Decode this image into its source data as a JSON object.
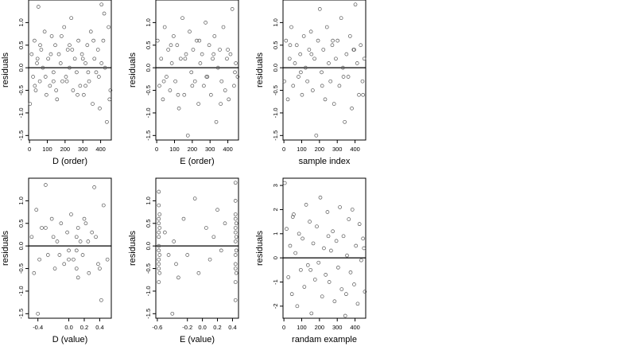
{
  "chart_data": [
    {
      "type": "scatter",
      "title": "",
      "xlabel": "D (order)",
      "ylabel": "residuals",
      "xlim": [
        -5,
        460
      ],
      "ylim": [
        -1.6,
        1.5
      ],
      "x_ticks": [
        0,
        100,
        200,
        300,
        400
      ],
      "x_tick_labels": [
        "0",
        "100",
        "200",
        "300",
        "400"
      ],
      "y_ticks": [
        -1.5,
        -1.0,
        -0.5,
        0.0,
        0.5,
        1.0
      ],
      "y_tick_labels": [
        "-1.5",
        "-1.0",
        "-0.5",
        "0.0",
        "0.5",
        "1.0"
      ],
      "reference_line": 0.0,
      "x": [
        3,
        12,
        20,
        28,
        35,
        42,
        50,
        58,
        66,
        75,
        85,
        95,
        105,
        115,
        125,
        135,
        145,
        155,
        165,
        175,
        185,
        195,
        205,
        215,
        225,
        235,
        245,
        255,
        265,
        275,
        285,
        295,
        305,
        315,
        325,
        335,
        345,
        355,
        365,
        375,
        385,
        395,
        405,
        415,
        425,
        435,
        445,
        455,
        30,
        60,
        90,
        120,
        150,
        180,
        210,
        240,
        270,
        300,
        330,
        360,
        390,
        420,
        450,
        45,
        135,
        225,
        315,
        405
      ],
      "y": [
        -0.8,
        0.3,
        -0.2,
        0.6,
        -0.5,
        0.1,
        1.35,
        -0.3,
        0.4,
        0.0,
        0.8,
        -0.6,
        0.2,
        -0.4,
        0.7,
        -0.1,
        0.5,
        -0.7,
        0.3,
        0.1,
        -0.3,
        0.9,
        -0.2,
        0.4,
        0.0,
        1.1,
        -0.5,
        0.2,
        -0.1,
        0.6,
        -0.4,
        0.3,
        -0.6,
        0.1,
        0.5,
        -0.3,
        0.8,
        -0.8,
        0.2,
        -0.1,
        0.4,
        -0.9,
        1.4,
        0.6,
        0.0,
        -1.2,
        0.9,
        -0.5,
        -0.4,
        0.5,
        -0.2,
        0.3,
        -0.5,
        0.7,
        -0.3,
        0.4,
        -0.6,
        0.2,
        -0.1,
        0.6,
        -0.2,
        1.2,
        -0.7,
        0.2,
        -0.3,
        0.5,
        -0.4,
        0.1
      ]
    },
    {
      "type": "scatter",
      "title": "",
      "xlabel": "E (order)",
      "ylabel": "residuals",
      "xlim": [
        -5,
        460
      ],
      "ylim": [
        -1.6,
        1.5
      ],
      "x_ticks": [
        0,
        100,
        200,
        300,
        400
      ],
      "x_tick_labels": [
        "0",
        "100",
        "200",
        "300",
        "400"
      ],
      "y_ticks": [
        -1.5,
        -1.0,
        -0.5,
        0.0,
        0.5,
        1.0
      ],
      "y_tick_labels": [
        "-1.5",
        "-1.0",
        "-0.5",
        "0.0",
        "0.5",
        "1.0"
      ],
      "reference_line": 0.0,
      "x": [
        5,
        15,
        25,
        35,
        45,
        55,
        65,
        75,
        85,
        95,
        105,
        115,
        125,
        135,
        145,
        155,
        165,
        175,
        185,
        195,
        205,
        215,
        225,
        235,
        245,
        255,
        265,
        275,
        285,
        295,
        305,
        315,
        325,
        335,
        345,
        355,
        365,
        375,
        385,
        395,
        405,
        415,
        425,
        435,
        445,
        455,
        40,
        80,
        120,
        160,
        200,
        240,
        280,
        320,
        360,
        400,
        440
      ],
      "y": [
        0.6,
        -0.4,
        0.2,
        -0.7,
        0.9,
        -0.2,
        0.4,
        -0.5,
        0.1,
        0.7,
        -0.3,
        0.5,
        -0.9,
        0.2,
        1.1,
        -0.6,
        0.3,
        -1.5,
        0.8,
        -0.1,
        0.4,
        -0.3,
        0.6,
        -0.8,
        0.1,
        0.3,
        -0.4,
        1.0,
        -0.2,
        0.5,
        -0.6,
        0.2,
        0.7,
        -1.2,
        0.0,
        0.4,
        -0.3,
        0.9,
        -0.5,
        0.2,
        -0.7,
        0.3,
        1.3,
        -0.4,
        0.1,
        -0.2,
        -0.3,
        0.5,
        -0.6,
        0.2,
        -0.4,
        0.6,
        -0.2,
        0.3,
        -0.8,
        0.4,
        -0.1
      ]
    },
    {
      "type": "scatter",
      "title": "",
      "xlabel": "sample index",
      "ylabel": "residuals",
      "xlim": [
        -5,
        460
      ],
      "ylim": [
        -1.6,
        1.5
      ],
      "x_ticks": [
        0,
        100,
        200,
        300,
        400
      ],
      "x_tick_labels": [
        "0",
        "100",
        "200",
        "300",
        "400"
      ],
      "y_ticks": [
        -1.5,
        -1.0,
        -0.5,
        0.0,
        0.5,
        1.0
      ],
      "y_tick_labels": [
        "-1.5",
        "-1.0",
        "-0.5",
        "0.0",
        "0.5",
        "1.0"
      ],
      "reference_line": 0.0,
      "x": [
        2,
        12,
        22,
        32,
        42,
        52,
        62,
        72,
        82,
        92,
        102,
        112,
        122,
        132,
        142,
        152,
        162,
        172,
        182,
        192,
        202,
        212,
        222,
        232,
        242,
        252,
        262,
        272,
        282,
        292,
        302,
        312,
        322,
        332,
        342,
        352,
        362,
        372,
        382,
        392,
        402,
        412,
        422,
        432,
        442,
        452,
        35,
        95,
        155,
        215,
        275,
        335,
        395,
        445
      ],
      "y": [
        -0.3,
        0.6,
        -0.7,
        0.2,
        0.9,
        -0.4,
        0.1,
        0.5,
        -0.2,
        0.3,
        -0.6,
        0.7,
        0.0,
        -0.3,
        0.4,
        0.8,
        -0.5,
        0.2,
        -1.5,
        0.6,
        1.3,
        -0.1,
        0.4,
        -0.7,
        0.9,
        0.1,
        -0.3,
        0.5,
        -0.8,
        0.2,
        0.6,
        -0.4,
        1.1,
        0.0,
        -1.2,
        0.3,
        -0.2,
        0.7,
        -0.9,
        0.4,
        1.4,
        0.1,
        -0.6,
        0.5,
        -0.3,
        0.2,
        0.5,
        -0.1,
        0.3,
        -0.4,
        0.6,
        -0.2,
        0.4,
        -0.6
      ]
    },
    {
      "type": "scatter",
      "title": "",
      "xlabel": "D (value)",
      "ylabel": "residuals",
      "xlim": [
        -0.52,
        0.55
      ],
      "ylim": [
        -1.6,
        1.5
      ],
      "x_ticks": [
        -0.4,
        0.0,
        0.2,
        0.4
      ],
      "x_tick_labels": [
        "-0.4",
        "0.0",
        "0.2",
        "0.4"
      ],
      "y_ticks": [
        -1.5,
        -1.0,
        -0.5,
        0.0,
        0.5,
        1.0
      ],
      "y_tick_labels": [
        "-1.5",
        "-1.0",
        "-0.5",
        "0.0",
        "0.5",
        "1.0"
      ],
      "reference_line": 0.0,
      "x": [
        -0.48,
        -0.45,
        -0.42,
        -0.38,
        -0.35,
        -0.3,
        -0.27,
        -0.22,
        -0.18,
        -0.15,
        -0.1,
        -0.06,
        -0.02,
        0.0,
        0.03,
        0.06,
        0.1,
        0.1,
        0.12,
        0.12,
        0.15,
        0.18,
        0.22,
        0.26,
        0.3,
        0.33,
        0.38,
        0.42,
        0.45,
        0.5,
        -0.4,
        -0.2,
        0.0,
        0.2,
        0.4,
        -0.3,
        0.1,
        0.35,
        -0.12,
        0.25
      ],
      "y": [
        0.2,
        -0.6,
        0.8,
        -0.3,
        0.4,
        1.35,
        -0.2,
        0.6,
        -0.5,
        0.1,
        0.5,
        -0.4,
        0.3,
        -0.1,
        0.7,
        -0.3,
        -0.5,
        0.2,
        -0.7,
        0.4,
        0.1,
        -0.2,
        0.5,
        -0.6,
        0.3,
        1.3,
        -0.4,
        -1.2,
        0.9,
        -0.3,
        -1.5,
        0.2,
        -0.3,
        0.6,
        -0.5,
        0.4,
        -0.1,
        0.2,
        -0.2,
        0.1
      ]
    },
    {
      "type": "scatter",
      "title": "",
      "xlabel": "E (value)",
      "ylabel": "residuals",
      "xlim": [
        -0.62,
        0.48
      ],
      "ylim": [
        -1.6,
        1.5
      ],
      "x_ticks": [
        -0.6,
        -0.2,
        0.0,
        0.2,
        0.4
      ],
      "x_tick_labels": [
        "-0.6",
        "-0.2",
        "0.0",
        "0.2",
        "0.4"
      ],
      "y_ticks": [
        -1.5,
        -1.0,
        -0.5,
        0.0,
        0.5,
        1.0
      ],
      "y_tick_labels": [
        "-1.5",
        "-1.0",
        "-0.5",
        "0.0",
        "0.5",
        "1.0"
      ],
      "reference_line": 0.0,
      "x": [
        -0.58,
        -0.58,
        -0.58,
        -0.58,
        -0.58,
        -0.58,
        -0.58,
        -0.58,
        -0.58,
        -0.58,
        -0.58,
        -0.58,
        -0.57,
        -0.57,
        -0.57,
        -0.57,
        -0.5,
        -0.45,
        -0.4,
        -0.38,
        -0.35,
        -0.32,
        -0.25,
        -0.2,
        -0.1,
        -0.05,
        0.05,
        0.1,
        0.15,
        0.2,
        0.25,
        0.3,
        0.44,
        0.44,
        0.44,
        0.44,
        0.44,
        0.44,
        0.44,
        0.44,
        0.44,
        0.44,
        0.44,
        0.44,
        0.45,
        0.45,
        0.45,
        0.45
      ],
      "y": [
        1.2,
        0.9,
        0.6,
        0.3,
        0.0,
        -0.3,
        -0.5,
        -0.8,
        0.5,
        0.2,
        -0.1,
        -0.4,
        0.7,
        -0.6,
        0.4,
        -0.2,
        0.3,
        -0.2,
        -1.5,
        0.1,
        -0.4,
        -0.7,
        0.6,
        -0.2,
        1.05,
        -0.6,
        0.4,
        -0.3,
        0.2,
        0.8,
        -0.1,
        0.5,
        1.4,
        1.0,
        0.7,
        0.4,
        0.1,
        -0.2,
        -0.5,
        -0.8,
        -1.2,
        0.6,
        0.3,
        -0.4,
        0.2,
        -0.1,
        -0.6,
        0.5
      ]
    },
    {
      "type": "scatter",
      "title": "",
      "xlabel": "randam example",
      "ylabel": "residuals",
      "xlim": [
        -5,
        460
      ],
      "ylim": [
        -2.5,
        3.3
      ],
      "x_ticks": [
        0,
        100,
        200,
        300,
        400
      ],
      "x_tick_labels": [
        "0",
        "100",
        "200",
        "300",
        "400"
      ],
      "y_ticks": [
        -2,
        -1,
        0,
        1,
        2,
        3
      ],
      "y_tick_labels": [
        "-2",
        "-1",
        "0",
        "1",
        "2",
        "3"
      ],
      "reference_line": 0.0,
      "x": [
        5,
        15,
        25,
        35,
        45,
        55,
        65,
        75,
        85,
        95,
        105,
        115,
        125,
        135,
        145,
        155,
        165,
        175,
        185,
        195,
        205,
        215,
        225,
        235,
        245,
        255,
        265,
        275,
        285,
        295,
        305,
        315,
        325,
        335,
        345,
        355,
        365,
        375,
        385,
        395,
        405,
        415,
        425,
        435,
        445,
        455,
        50,
        150,
        250,
        350,
        450
      ],
      "y": [
        3.1,
        1.2,
        -0.8,
        0.5,
        -1.5,
        1.8,
        0.2,
        -2.0,
        1.0,
        -0.5,
        0.8,
        -1.2,
        2.2,
        -0.3,
        1.5,
        -2.3,
        0.6,
        -0.9,
        1.3,
        -0.2,
        2.5,
        -1.6,
        0.4,
        -0.7,
        1.9,
        -1.0,
        0.3,
        1.1,
        -1.8,
        0.7,
        -0.4,
        2.1,
        -1.3,
        0.9,
        -2.4,
        0.1,
        1.6,
        -0.6,
        2.0,
        -1.1,
        0.5,
        -1.9,
        1.4,
        -0.1,
        0.8,
        -1.4,
        1.7,
        -0.5,
        0.9,
        -1.5,
        0.4
      ]
    }
  ]
}
